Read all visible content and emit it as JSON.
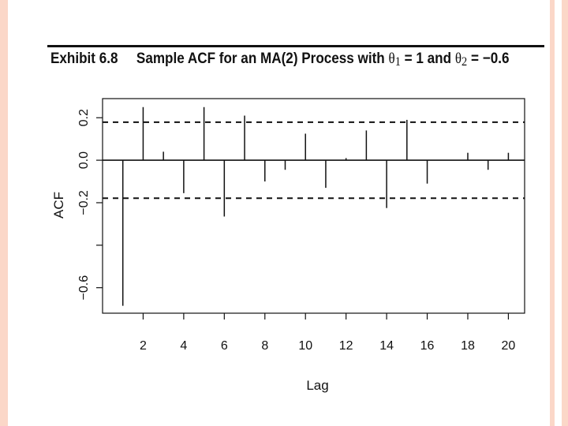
{
  "exhibit": {
    "label": "Exhibit 6.8",
    "title_prefix": "Sample ACF for an MA(2) Process with ",
    "theta": "θ",
    "sub1": "1",
    "eq1": " = 1 and ",
    "sub2": "2",
    "eq2": " = −0.6"
  },
  "chart_data": {
    "type": "bar",
    "xlabel": "Lag",
    "ylabel": "ACF",
    "xlim": [
      0,
      20.8
    ],
    "ylim": [
      -0.72,
      0.29
    ],
    "x_ticks": [
      2,
      4,
      6,
      8,
      10,
      12,
      14,
      16,
      18,
      20
    ],
    "x_tick_labels": [
      "2",
      "4",
      "6",
      "8",
      "10",
      "12",
      "14",
      "16",
      "18",
      "20"
    ],
    "y_ticks": [
      0.2,
      0.0,
      -0.2,
      -0.6
    ],
    "y_tick_labels": [
      "0.2",
      "0.0",
      "−0.2",
      "−0.6"
    ],
    "confidence_bounds": [
      0.179,
      -0.179
    ],
    "lags": [
      1,
      2,
      3,
      4,
      5,
      6,
      7,
      8,
      9,
      10,
      11,
      12,
      13,
      14,
      15,
      16,
      17,
      18,
      19,
      20
    ],
    "values": [
      -0.685,
      0.25,
      0.04,
      -0.155,
      0.25,
      -0.265,
      0.21,
      -0.1,
      -0.045,
      0.125,
      -0.13,
      0.01,
      0.14,
      -0.225,
      0.19,
      -0.11,
      0.0,
      0.035,
      -0.045,
      0.035
    ],
    "grid": false,
    "legend": "none"
  }
}
